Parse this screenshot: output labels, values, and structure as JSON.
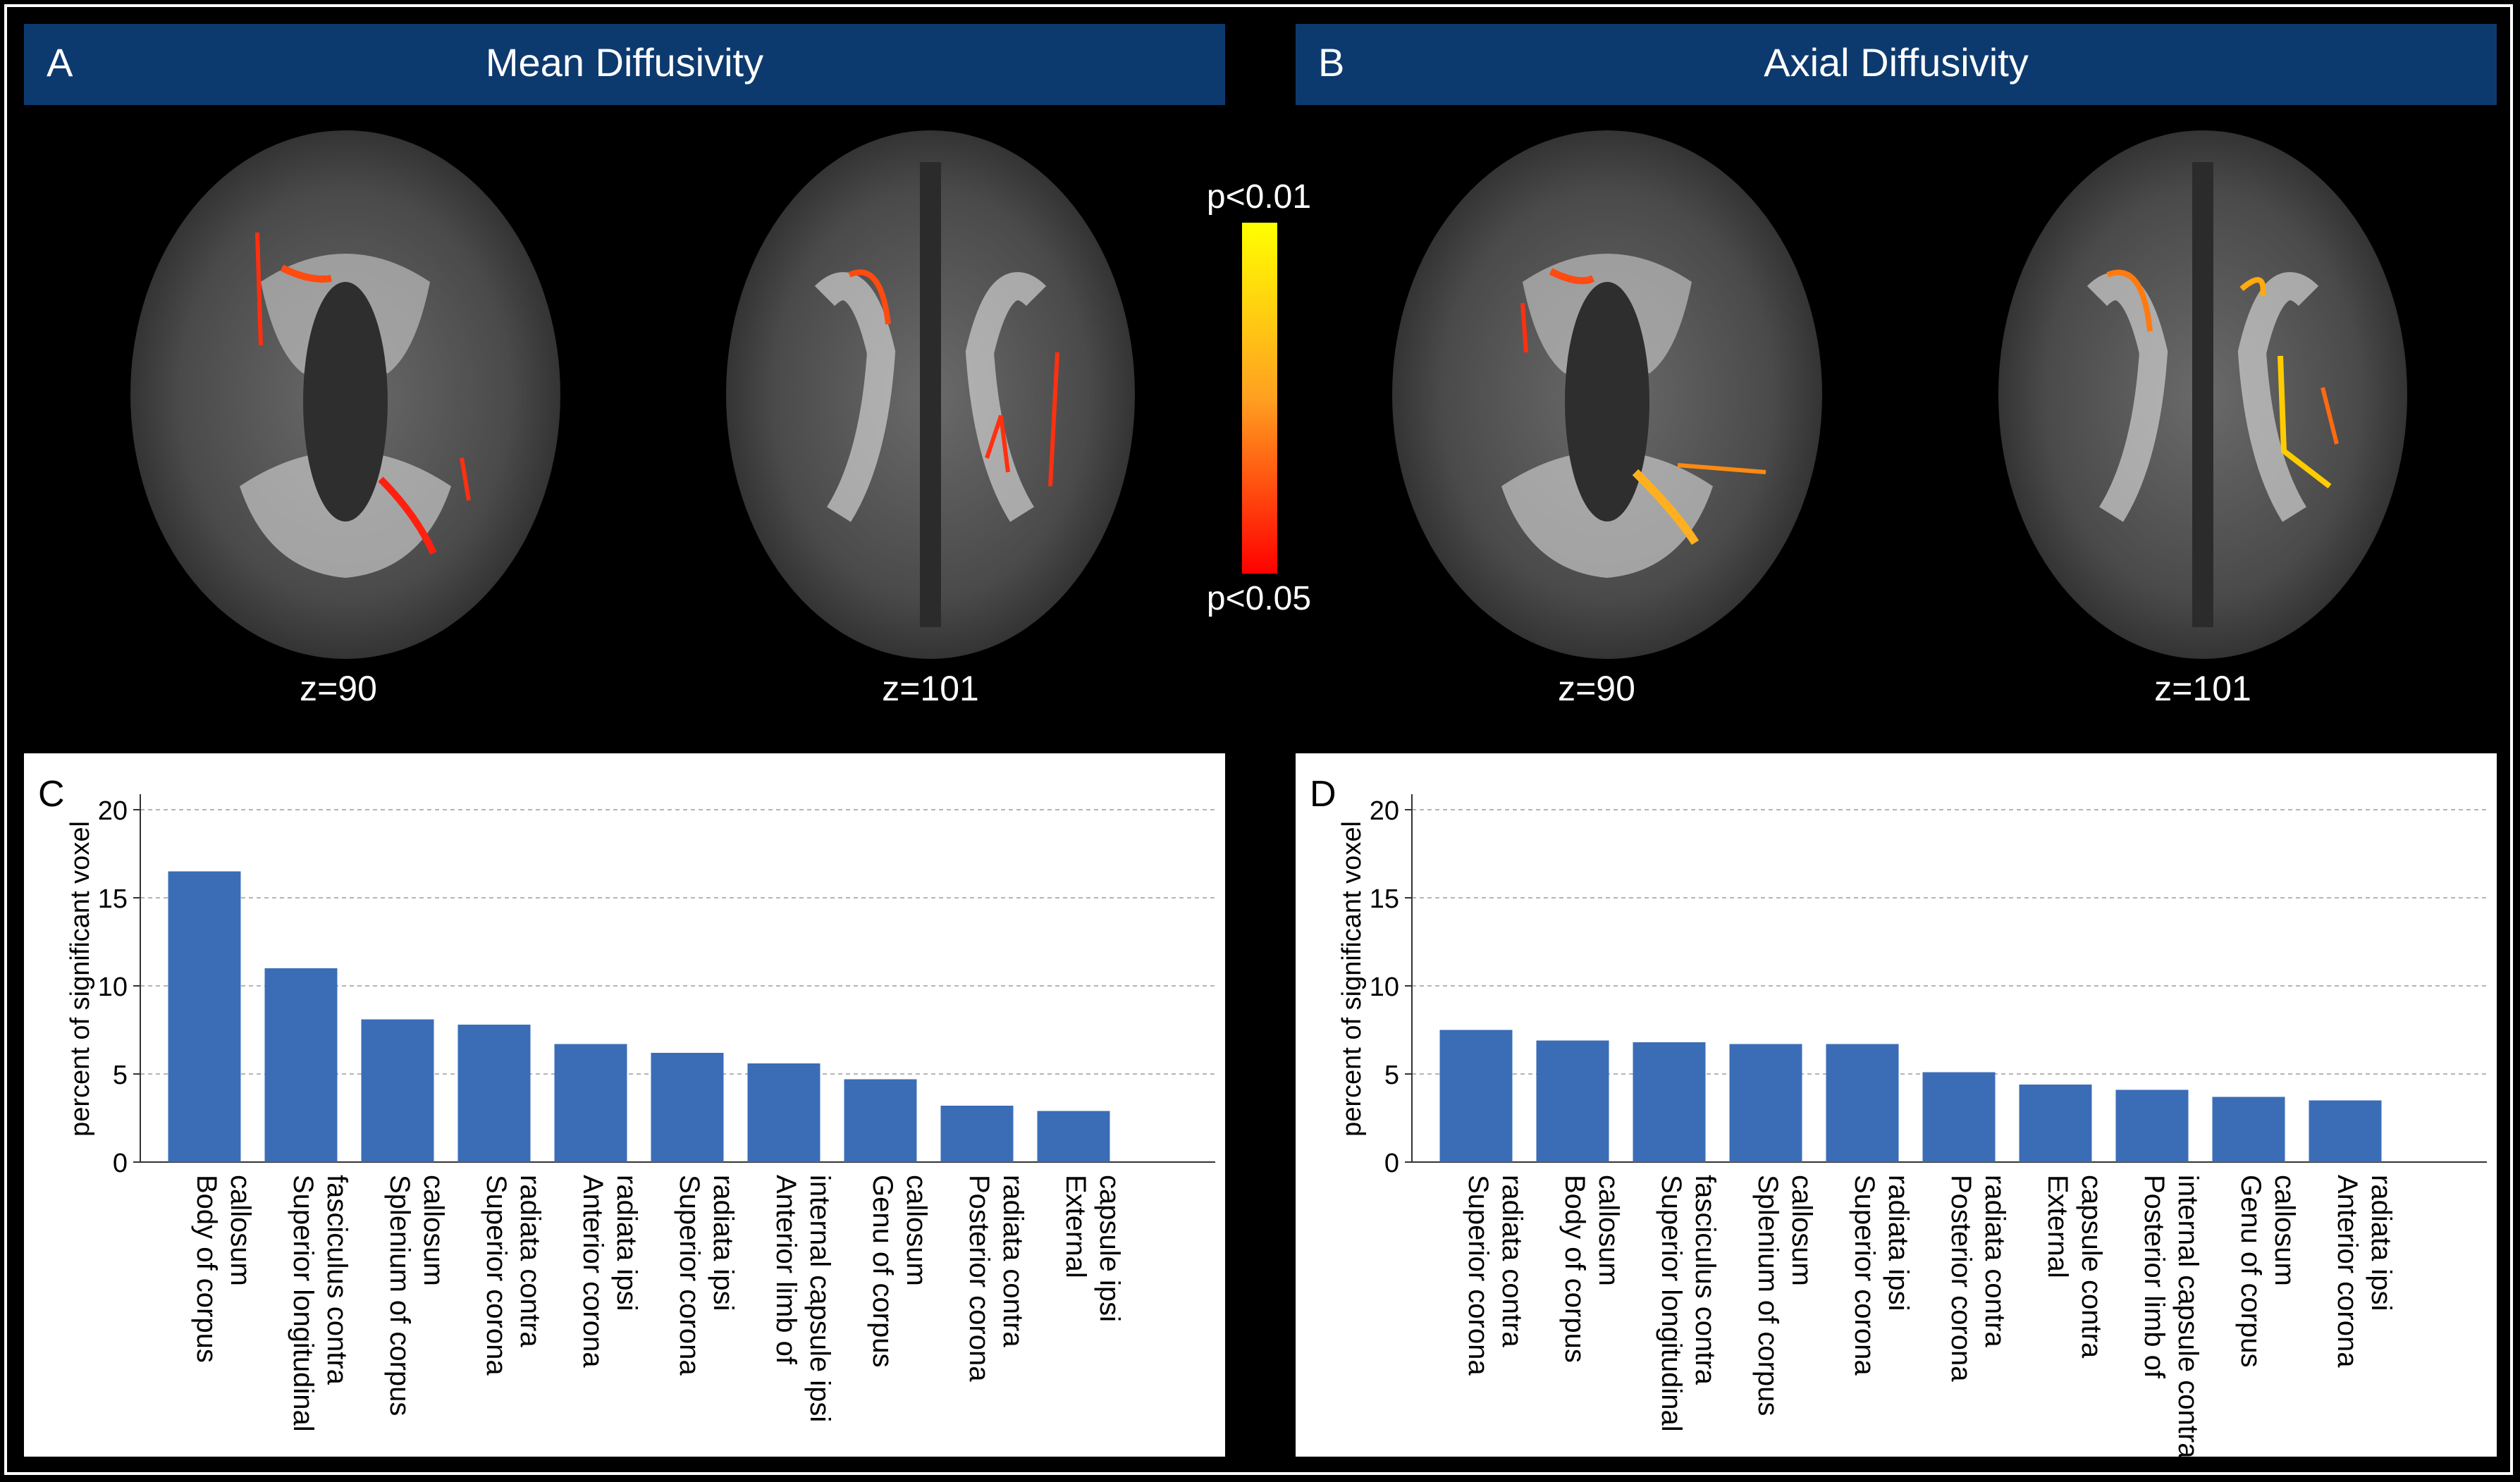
{
  "panels": {
    "A": {
      "letter": "A",
      "title": "Mean Diffusivity"
    },
    "B": {
      "letter": "B",
      "title": "Axial Diffusivity"
    },
    "C": {
      "letter": "C"
    },
    "D": {
      "letter": "D"
    }
  },
  "slices": [
    "z=90",
    "z=101",
    "z=90",
    "z=101"
  ],
  "colorbar": {
    "top_label": "p<0.01",
    "bottom_label": "p<0.05",
    "top_color": "#ffff00",
    "bottom_color": "#ff0000"
  },
  "colors": {
    "header_bg": "#0d3a6e",
    "bar": "#3b6db7"
  },
  "chart_data": [
    {
      "panel": "C",
      "type": "bar",
      "title": "",
      "xlabel": "",
      "ylabel": "percent of significant voxel",
      "ylim": [
        0,
        20
      ],
      "yticks": [
        0,
        5,
        10,
        15,
        20
      ],
      "grid": true,
      "categories": [
        "Body of corpus callosum",
        "Superior longitudinal fasciculus contra",
        "Splenium of corpus callosum",
        "Superior corona radiata contra",
        "Anterior corona radiata ipsi",
        "Superior corona radiata ipsi",
        "Anterior limb of internal capsule ipsi",
        "Genu of corpus callosum",
        "Posterior corona radiata contra",
        "External capsule ipsi"
      ],
      "category_lines": [
        [
          "Body of corpus",
          "callosum"
        ],
        [
          "Superior longitudinal",
          "fasciculus contra"
        ],
        [
          "Splenium of corpus",
          "callosum"
        ],
        [
          "Superior corona",
          "radiata contra"
        ],
        [
          "Anterior corona",
          "radiata ipsi"
        ],
        [
          "Superior corona",
          "radiata ipsi"
        ],
        [
          "Anterior limb of",
          "internal capsule ipsi"
        ],
        [
          "Genu of corpus",
          "callosum"
        ],
        [
          "Posterior corona",
          "radiata contra"
        ],
        [
          "External",
          "capsule ipsi"
        ]
      ],
      "values": [
        16.5,
        11.0,
        8.1,
        7.8,
        6.7,
        6.2,
        5.6,
        4.7,
        3.2,
        2.9
      ]
    },
    {
      "panel": "D",
      "type": "bar",
      "title": "",
      "xlabel": "",
      "ylabel": "percent of significant voxel",
      "ylim": [
        0,
        20
      ],
      "yticks": [
        0,
        5,
        10,
        15,
        20
      ],
      "grid": true,
      "categories": [
        "Superior corona radiata contra",
        "Body of corpus callosum",
        "Superior longitudinal fasciculus contra",
        "Splenium of corpus callosum",
        "Superior corona radiata ipsi",
        "Posterior corona radiata contra",
        "External capsule contra",
        "Posterior limb of internal capsule contra",
        "Genu of corpus callosum",
        "Anterior corona radiata ipsi"
      ],
      "category_lines": [
        [
          "Superior corona",
          "radiata contra"
        ],
        [
          "Body of corpus",
          "callosum"
        ],
        [
          "Superior longitudinal",
          "fasciculus contra"
        ],
        [
          "Splenium of corpus",
          "callosum"
        ],
        [
          "Superior corona",
          "radiata ipsi"
        ],
        [
          "Posterior corona",
          "radiata contra"
        ],
        [
          "External",
          "capsule contra"
        ],
        [
          "Posterior limb of",
          "internal capsule contra"
        ],
        [
          "Genu of corpus",
          "callosum"
        ],
        [
          "Anterior corona",
          "radiata ipsi"
        ]
      ],
      "values": [
        7.5,
        6.9,
        6.8,
        6.7,
        6.7,
        5.1,
        4.4,
        4.1,
        3.7,
        3.5
      ]
    }
  ]
}
